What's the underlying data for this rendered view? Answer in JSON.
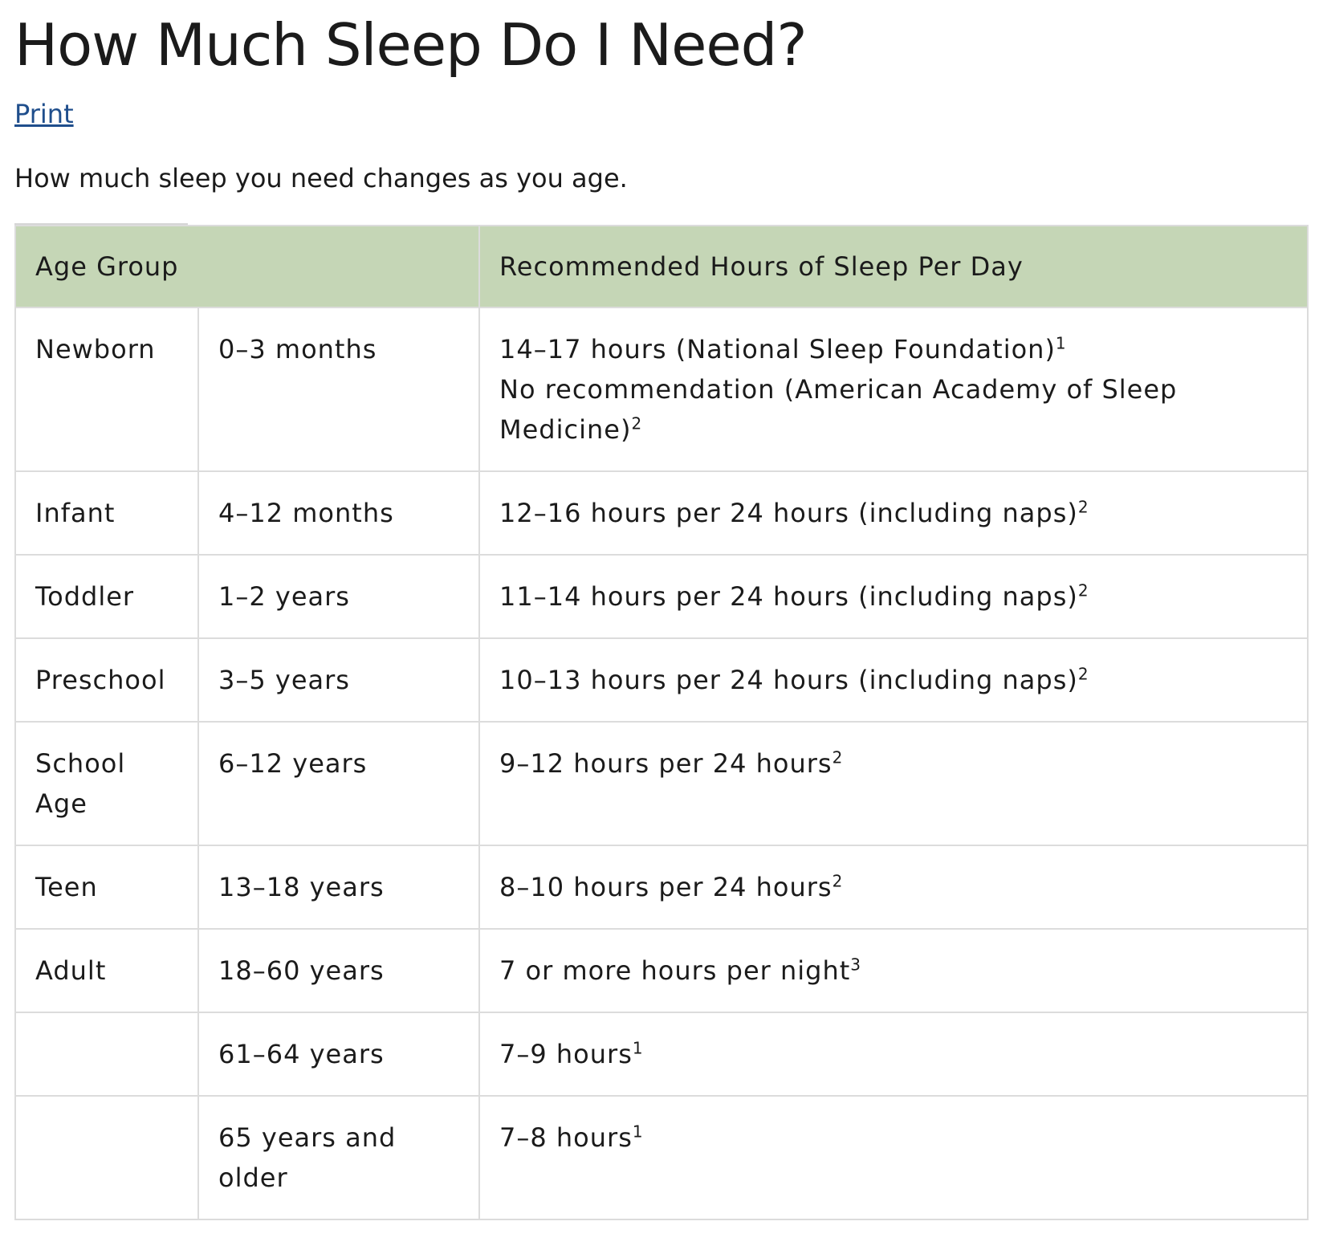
{
  "page": {
    "title": "How Much Sleep Do I Need?",
    "print_label": "Print",
    "intro": "How much sleep you need changes as you age."
  },
  "table": {
    "headers": {
      "age_group": "Age Group",
      "recommended": "Recommended Hours of Sleep Per Day"
    },
    "rows": [
      {
        "group": "Newborn",
        "age": "0–3 months",
        "rec": [
          {
            "text": "14–17 hours (National Sleep Foundation)",
            "sup": "1"
          },
          {
            "text": "No recommendation (American Academy of Sleep Medicine)",
            "sup": "2"
          }
        ]
      },
      {
        "group": "Infant",
        "age": "4–12 months",
        "rec": [
          {
            "text": "12–16 hours per 24 hours (including naps)",
            "sup": "2"
          }
        ]
      },
      {
        "group": "Toddler",
        "age": "1–2 years",
        "rec": [
          {
            "text": "11–14 hours per 24 hours (including naps)",
            "sup": "2"
          }
        ]
      },
      {
        "group": "Preschool",
        "age": "3–5 years",
        "rec": [
          {
            "text": "10–13 hours per 24 hours (including naps)",
            "sup": "2"
          }
        ]
      },
      {
        "group": "School Age",
        "age": "6–12 years",
        "rec": [
          {
            "text": "9–12 hours per 24 hours",
            "sup": "2"
          }
        ]
      },
      {
        "group": "Teen",
        "age": "13–18 years",
        "rec": [
          {
            "text": "8–10 hours per 24 hours",
            "sup": "2"
          }
        ]
      },
      {
        "group": "Adult",
        "age": "18–60 years",
        "rec": [
          {
            "text": "7 or more hours per night",
            "sup": "3"
          }
        ]
      },
      {
        "group": "",
        "age": "61–64 years",
        "rec": [
          {
            "text": "7–9 hours",
            "sup": "1"
          }
        ]
      },
      {
        "group": "",
        "age": "65 years and older",
        "rec": [
          {
            "text": "7–8 hours",
            "sup": "1"
          }
        ]
      }
    ]
  }
}
